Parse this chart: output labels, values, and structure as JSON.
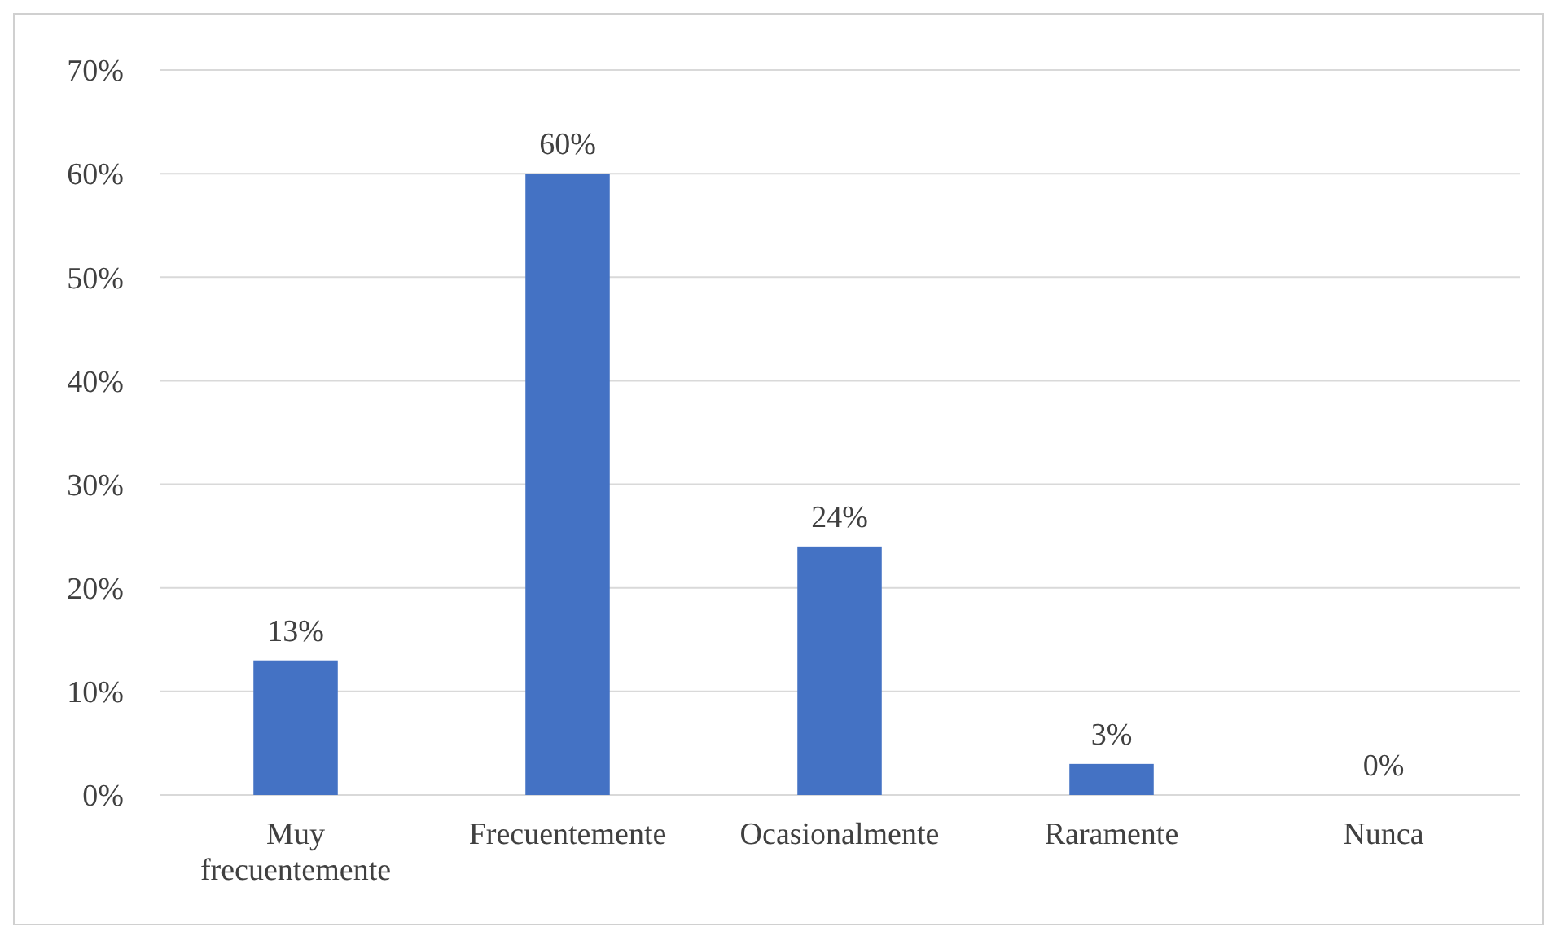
{
  "chart_data": {
    "type": "bar",
    "categories": [
      "Muy frecuentemente",
      "Frecuentemente",
      "Ocasionalmente",
      "Raramente",
      "Nunca"
    ],
    "values": [
      13,
      60,
      24,
      3,
      0
    ],
    "color": "#4472c4",
    "ylim": [
      0,
      70
    ],
    "yticks": [
      {
        "value": 0,
        "label": "0%"
      },
      {
        "value": 10,
        "label": "10%"
      },
      {
        "value": 20,
        "label": "20%"
      },
      {
        "value": 30,
        "label": "30%"
      },
      {
        "value": 40,
        "label": "40%"
      },
      {
        "value": 50,
        "label": "50%"
      },
      {
        "value": 60,
        "label": "60%"
      },
      {
        "value": 70,
        "label": "70%"
      }
    ],
    "value_labels": [
      "13%",
      "60%",
      "24%",
      "3%",
      "0%"
    ],
    "grid": "y"
  }
}
